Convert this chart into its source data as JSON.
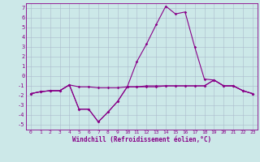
{
  "xlabel": "Windchill (Refroidissement éolien,°C)",
  "x_ticks": [
    0,
    1,
    2,
    3,
    4,
    5,
    6,
    7,
    8,
    9,
    10,
    11,
    12,
    13,
    14,
    15,
    16,
    17,
    18,
    19,
    20,
    21,
    22,
    23
  ],
  "ylim": [
    -5.5,
    7.5
  ],
  "xlim": [
    -0.5,
    23.5
  ],
  "yticks": [
    -5,
    -4,
    -3,
    -2,
    -1,
    0,
    1,
    2,
    3,
    4,
    5,
    6,
    7
  ],
  "bg_color": "#cce8e8",
  "line_color": "#880088",
  "grid_color": "#aabbcc",
  "line1_y": [
    -1.8,
    -1.6,
    -1.5,
    -1.5,
    -0.9,
    -1.1,
    -1.1,
    -1.2,
    -1.2,
    -1.2,
    -1.1,
    -1.1,
    -1.0,
    -1.0,
    -1.0,
    -1.0,
    -1.0,
    -1.0,
    -1.0,
    -0.4,
    -1.0,
    -1.0,
    -1.5,
    -1.8
  ],
  "line2_y": [
    -1.8,
    -1.6,
    -1.5,
    -1.5,
    -0.9,
    -3.4,
    -3.4,
    -4.7,
    -3.7,
    -2.6,
    -1.1,
    -1.1,
    -1.1,
    -1.1,
    -1.0,
    -1.0,
    -1.0,
    -1.0,
    -1.0,
    -0.4,
    -1.0,
    -1.0,
    -1.5,
    -1.8
  ],
  "line3_y": [
    -1.8,
    -1.6,
    -1.5,
    -1.5,
    -0.9,
    -3.4,
    -3.4,
    -4.7,
    -3.7,
    -2.6,
    -1.1,
    1.5,
    3.3,
    5.3,
    7.2,
    6.4,
    6.6,
    3.0,
    -0.3,
    -0.4,
    -1.0,
    -1.0,
    -1.5,
    -1.8
  ],
  "linewidth": 0.8,
  "markersize": 1.8
}
